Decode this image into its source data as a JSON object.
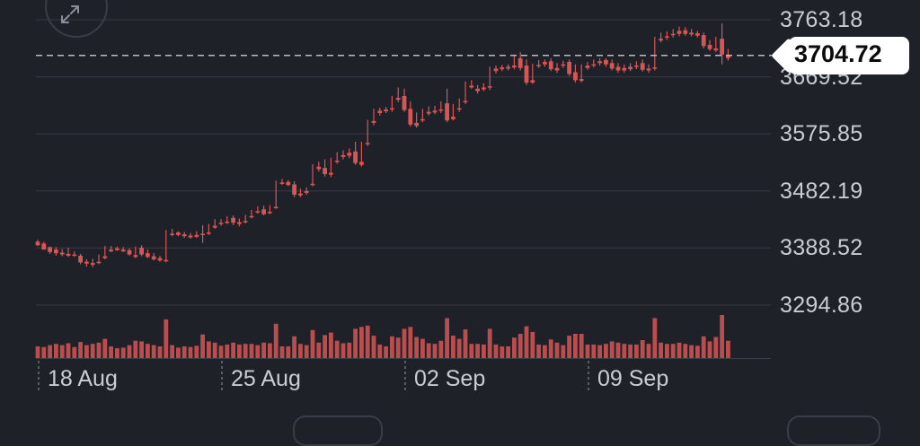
{
  "toolbar": {
    "expand_icon": "expand-diagonal-icon"
  },
  "chart_data": {
    "type": "candlestick",
    "y_ticks": [
      "3763.18",
      "3669.52",
      "3575.85",
      "3482.19",
      "3388.52",
      "3294.86"
    ],
    "y_tick_values": [
      3763.18,
      3669.52,
      3575.85,
      3482.19,
      3388.52,
      3294.86
    ],
    "x_ticks": [
      {
        "label": "18 Aug",
        "index": 0
      },
      {
        "label": "25 Aug",
        "index": 30
      },
      {
        "label": "02 Sep",
        "index": 60
      },
      {
        "label": "09 Sep",
        "index": 90
      }
    ],
    "current_price": "3704.72",
    "current_price_value": 3704.72,
    "ylim": [
      3265,
      3780
    ],
    "grid": true,
    "colors": {
      "up": "#5fa14c",
      "down": "#d65656",
      "grid": "#30333b",
      "doji": "#9aa0a8"
    },
    "candles": [
      [
        3399,
        3402,
        3393,
        3392
      ],
      [
        3396,
        3399,
        3386,
        3390
      ],
      [
        3390,
        3391,
        3382,
        3379
      ],
      [
        3386,
        3390,
        3380,
        3376
      ],
      [
        3381,
        3387,
        3378,
        3375
      ],
      [
        3379,
        3389,
        3376,
        3374
      ],
      [
        3378,
        3383,
        3376,
        3374
      ],
      [
        3376,
        3379,
        3365,
        3362
      ],
      [
        3366,
        3370,
        3363,
        3358
      ],
      [
        3364,
        3371,
        3361,
        3357
      ],
      [
        3366,
        3378,
        3364,
        3362
      ],
      [
        3375,
        3392,
        3372,
        3370
      ],
      [
        3386,
        3392,
        3383,
        3382
      ],
      [
        3388,
        3391,
        3385,
        3384
      ],
      [
        3386,
        3390,
        3383,
        3382
      ],
      [
        3385,
        3388,
        3378,
        3376
      ],
      [
        3377,
        3391,
        3374,
        3372
      ],
      [
        3389,
        3393,
        3378,
        3375
      ],
      [
        3380,
        3386,
        3374,
        3372
      ],
      [
        3375,
        3380,
        3370,
        3368
      ],
      [
        3372,
        3376,
        3368,
        3366
      ],
      [
        3369,
        3418,
        3368,
        3365
      ],
      [
        3412,
        3420,
        3410,
        3408
      ],
      [
        3414,
        3416,
        3410,
        3408
      ],
      [
        3411,
        3415,
        3408,
        3405
      ],
      [
        3409,
        3413,
        3406,
        3404
      ],
      [
        3410,
        3416,
        3407,
        3405
      ],
      [
        3412,
        3426,
        3410,
        3397
      ],
      [
        3414,
        3428,
        3412,
        3410
      ],
      [
        3425,
        3436,
        3422,
        3420
      ],
      [
        3430,
        3436,
        3428,
        3425
      ],
      [
        3432,
        3441,
        3430,
        3428
      ],
      [
        3438,
        3442,
        3430,
        3426
      ],
      [
        3431,
        3437,
        3428,
        3424
      ],
      [
        3433,
        3443,
        3431,
        3429
      ],
      [
        3441,
        3451,
        3440,
        3437
      ],
      [
        3449,
        3457,
        3447,
        3445
      ],
      [
        3452,
        3458,
        3444,
        3442
      ],
      [
        3448,
        3459,
        3446,
        3444
      ],
      [
        3456,
        3499,
        3455,
        3453
      ],
      [
        3496,
        3502,
        3494,
        3492
      ],
      [
        3497,
        3500,
        3492,
        3490
      ],
      [
        3493,
        3498,
        3476,
        3472
      ],
      [
        3478,
        3486,
        3475,
        3472
      ],
      [
        3482,
        3488,
        3479,
        3476
      ],
      [
        3494,
        3526,
        3493,
        3490
      ],
      [
        3522,
        3530,
        3518,
        3514
      ],
      [
        3520,
        3534,
        3510,
        3506
      ],
      [
        3512,
        3537,
        3509,
        3505
      ],
      [
        3532,
        3546,
        3530,
        3527
      ],
      [
        3541,
        3549,
        3538,
        3534
      ],
      [
        3545,
        3552,
        3540,
        3536
      ],
      [
        3547,
        3563,
        3528,
        3525
      ],
      [
        3530,
        3563,
        3525,
        3522
      ],
      [
        3561,
        3599,
        3559,
        3556
      ],
      [
        3597,
        3617,
        3594,
        3590
      ],
      [
        3614,
        3619,
        3610,
        3606
      ],
      [
        3616,
        3620,
        3613,
        3610
      ],
      [
        3618,
        3638,
        3616,
        3612
      ],
      [
        3635,
        3652,
        3632,
        3628
      ],
      [
        3638,
        3650,
        3615,
        3612
      ],
      [
        3617,
        3629,
        3591,
        3588
      ],
      [
        3594,
        3611,
        3589,
        3586
      ],
      [
        3600,
        3617,
        3598,
        3595
      ],
      [
        3612,
        3621,
        3609,
        3606
      ],
      [
        3614,
        3622,
        3611,
        3608
      ],
      [
        3616,
        3629,
        3614,
        3610
      ],
      [
        3626,
        3650,
        3598,
        3595
      ],
      [
        3604,
        3625,
        3600,
        3598
      ],
      [
        3618,
        3634,
        3616,
        3612
      ],
      [
        3630,
        3662,
        3628,
        3625
      ],
      [
        3655,
        3664,
        3652,
        3650
      ],
      [
        3650,
        3656,
        3646,
        3642
      ],
      [
        3652,
        3659,
        3649,
        3646
      ],
      [
        3654,
        3686,
        3652,
        3648
      ],
      [
        3683,
        3688,
        3679,
        3675
      ],
      [
        3685,
        3689,
        3682,
        3679
      ],
      [
        3686,
        3690,
        3683,
        3680
      ],
      [
        3688,
        3706,
        3685,
        3682
      ],
      [
        3700,
        3710,
        3684,
        3680
      ],
      [
        3688,
        3698,
        3660,
        3656
      ],
      [
        3664,
        3691,
        3660,
        3658
      ],
      [
        3689,
        3697,
        3687,
        3684
      ],
      [
        3694,
        3698,
        3690,
        3686
      ],
      [
        3695,
        3700,
        3682,
        3679
      ],
      [
        3684,
        3692,
        3680,
        3676
      ],
      [
        3690,
        3696,
        3688,
        3684
      ],
      [
        3694,
        3698,
        3674,
        3671
      ],
      [
        3677,
        3690,
        3664,
        3660
      ],
      [
        3666,
        3690,
        3663,
        3660
      ],
      [
        3688,
        3694,
        3684,
        3681
      ],
      [
        3690,
        3698,
        3688,
        3685
      ],
      [
        3695,
        3700,
        3692,
        3688
      ],
      [
        3697,
        3700,
        3690,
        3686
      ],
      [
        3692,
        3698,
        3683,
        3680
      ],
      [
        3686,
        3692,
        3680,
        3676
      ],
      [
        3684,
        3690,
        3680,
        3676
      ],
      [
        3686,
        3692,
        3682,
        3679
      ],
      [
        3688,
        3695,
        3686,
        3682
      ],
      [
        3692,
        3698,
        3681,
        3678
      ],
      [
        3683,
        3690,
        3680,
        3676
      ],
      [
        3685,
        3735,
        3683,
        3680
      ],
      [
        3732,
        3742,
        3729,
        3726
      ],
      [
        3736,
        3744,
        3734,
        3730
      ],
      [
        3740,
        3748,
        3738,
        3734
      ],
      [
        3745,
        3752,
        3740,
        3736
      ],
      [
        3746,
        3751,
        3740,
        3737
      ],
      [
        3742,
        3748,
        3739,
        3736
      ],
      [
        3741,
        3745,
        3737,
        3734
      ],
      [
        3738,
        3742,
        3720,
        3716
      ],
      [
        3722,
        3730,
        3715,
        3712
      ],
      [
        3716,
        3735,
        3713,
        3710
      ],
      [
        3732,
        3757,
        3706,
        3690
      ],
      [
        3706,
        3715,
        3700,
        3696
      ]
    ]
  }
}
